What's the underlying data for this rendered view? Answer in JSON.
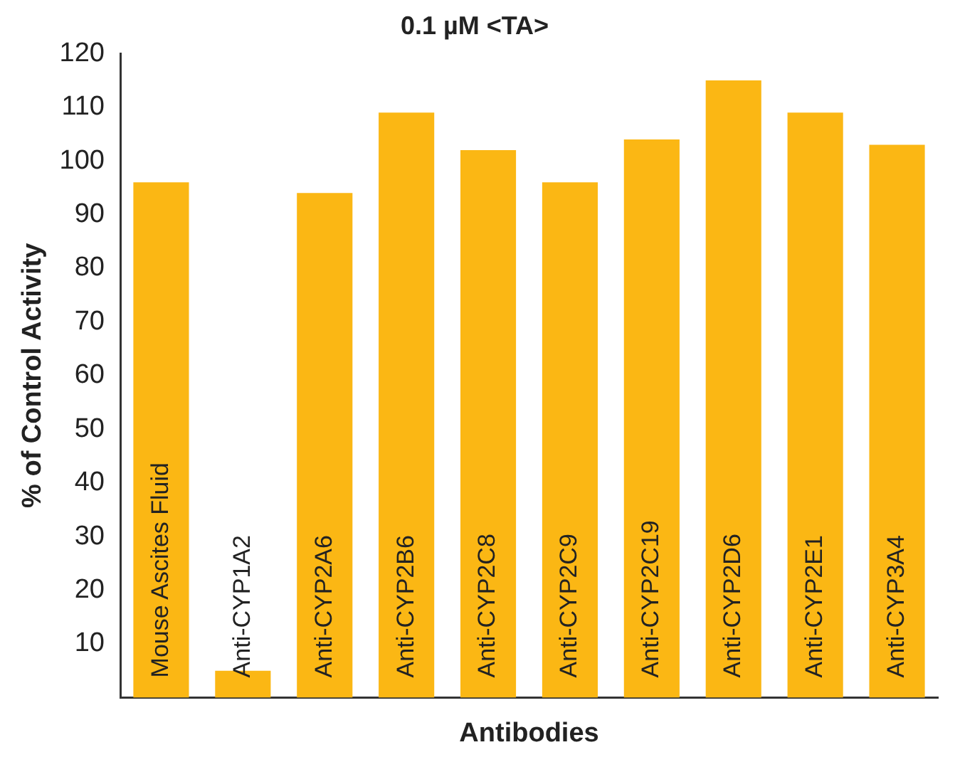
{
  "chart_data": {
    "type": "bar",
    "title": "0.1 µM <TA>",
    "xlabel": "Antibodies",
    "ylabel": "% of Control Activity",
    "categories": [
      "Mouse Ascites Fluid",
      "Anti-CYP1A2",
      "Anti-CYP2A6",
      "Anti-CYP2B6",
      "Anti-CYP2C8",
      "Anti-CYP2C9",
      "Anti-CYP2C19",
      "Anti-CYP2D6",
      "Anti-CYP2E1",
      "Anti-CYP3A4"
    ],
    "values": [
      96,
      5,
      94,
      109,
      102,
      96,
      104,
      115,
      109,
      103
    ],
    "color": "#fbb714",
    "ylim": [
      0,
      120
    ],
    "yticks": [
      10,
      20,
      30,
      40,
      50,
      60,
      70,
      80,
      90,
      100,
      110,
      120
    ],
    "grid": false,
    "legend": false
  }
}
